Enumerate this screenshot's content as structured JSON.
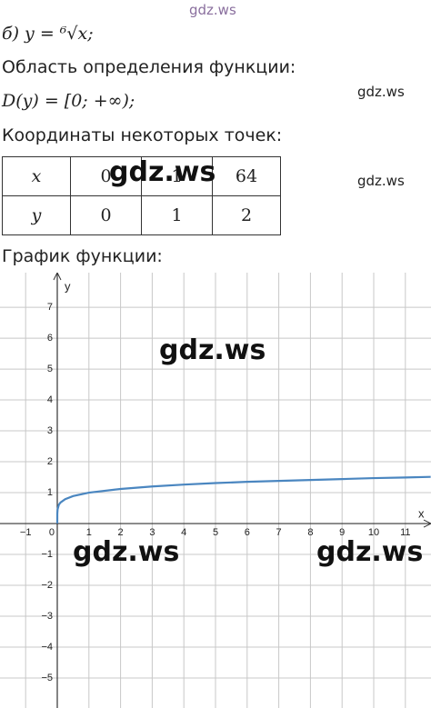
{
  "document": {
    "heading": "б) y = ⁶√x;",
    "domain_label": "Область определения функции:",
    "domain": "D(y) = [0; +∞);",
    "points_label": "Координаты некоторых точек:",
    "table": {
      "rows": [
        [
          "x",
          "0",
          "1",
          "64"
        ],
        [
          "y",
          "0",
          "1",
          "2"
        ]
      ]
    },
    "graph_label": "График функции:",
    "watermarks": [
      "gdz.ws",
      "gdz.ws",
      "gdz.ws",
      "gdz.ws",
      "gdz.ws",
      "gdz.ws",
      "gdz.ws"
    ]
  },
  "chart_data": {
    "type": "line",
    "xlabel": "x",
    "ylabel": "y",
    "x": [
      0,
      0.001,
      0.01,
      0.05,
      0.1,
      0.25,
      0.5,
      1,
      2,
      3,
      4,
      5,
      6,
      7,
      8,
      9,
      10,
      11,
      11.8
    ],
    "series": [
      {
        "color": "#4a86c0",
        "values": [
          0,
          0.32,
          0.46,
          0.61,
          0.68,
          0.79,
          0.89,
          1,
          1.12,
          1.2,
          1.26,
          1.31,
          1.35,
          1.38,
          1.41,
          1.44,
          1.47,
          1.49,
          1.51
        ]
      }
    ],
    "xlim": [
      -1.81,
      11.81
    ],
    "ylim": [
      -5.97,
      8.12
    ],
    "xticks": [
      {
        "value": -1,
        "label": "−1"
      },
      0,
      1,
      2,
      3,
      4,
      5,
      6,
      7,
      8,
      9,
      10,
      11
    ],
    "yticks": [
      {
        "value": -5,
        "label": "−5"
      },
      {
        "value": -4,
        "label": "−4"
      },
      {
        "value": -3,
        "label": "−3"
      },
      {
        "value": -2,
        "label": "−2"
      },
      {
        "value": -1,
        "label": "−1"
      },
      1,
      2,
      3,
      4,
      5,
      6,
      7
    ],
    "grid": true
  }
}
